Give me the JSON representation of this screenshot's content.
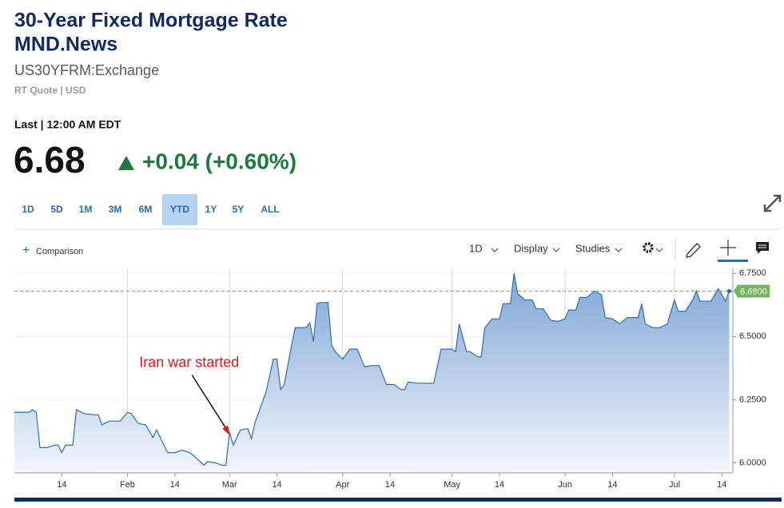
{
  "header": {
    "title_lines": [
      "30-Year Fixed Mortgage Rate",
      "MND.News"
    ],
    "symbol": "US30YFRM:Exchange",
    "quote_info": "RT Quote | USD",
    "last_label": "Last | 12:00 AM EDT"
  },
  "quote": {
    "price": "6.68",
    "change": "+0.04 (+0.60%)"
  },
  "range_buttons": [
    "1D",
    "5D",
    "1M",
    "3M",
    "6M",
    "YTD",
    "1Y",
    "5Y",
    "ALL"
  ],
  "active_range": "YTD",
  "toolbar": {
    "comparison": "Comparison",
    "interval": "1D",
    "display": "Display",
    "studies": "Studies"
  },
  "chart_data": {
    "type": "area",
    "series": [
      {
        "color": "#2f6db3",
        "x": [
          "01-01",
          "01-05",
          "01-06",
          "01-07",
          "01-08",
          "01-10",
          "01-12",
          "01-13",
          "01-14",
          "01-15",
          "01-17",
          "01-18",
          "01-20",
          "01-23",
          "01-24",
          "01-25",
          "01-27",
          "01-30",
          "02-01",
          "02-02",
          "02-04",
          "02-06",
          "02-08",
          "02-09",
          "02-10",
          "02-12",
          "02-14",
          "02-16",
          "02-18",
          "02-19",
          "02-22",
          "02-23",
          "02-25",
          "02-27",
          "02-28",
          "03-01",
          "03-02",
          "03-04",
          "03-06",
          "03-07",
          "03-08",
          "03-11",
          "03-13",
          "03-14",
          "03-15",
          "03-16",
          "03-18",
          "03-19",
          "03-22",
          "03-23",
          "03-24",
          "03-25",
          "03-26",
          "03-28",
          "03-29",
          "03-30",
          "04-01",
          "04-03",
          "04-05",
          "04-07",
          "04-09",
          "04-11",
          "04-13",
          "04-15",
          "04-17",
          "04-18",
          "04-19",
          "04-22",
          "04-26",
          "04-28",
          "05-01",
          "05-02",
          "05-03",
          "05-05",
          "05-06",
          "05-08",
          "05-09",
          "05-10",
          "05-12",
          "05-14",
          "05-15",
          "05-17",
          "05-18",
          "05-19",
          "05-21",
          "05-23",
          "05-24",
          "05-26",
          "05-28",
          "05-30",
          "06-01",
          "06-02",
          "06-04",
          "06-05",
          "06-07",
          "06-09",
          "06-11",
          "06-12",
          "06-14",
          "06-16",
          "06-18",
          "06-21",
          "06-22",
          "06-23",
          "06-25",
          "06-27",
          "06-29",
          "07-01",
          "07-02",
          "07-04",
          "07-06",
          "07-07",
          "07-08",
          "07-11",
          "07-13",
          "07-15",
          "07-16"
        ],
        "values": [
          6.2,
          6.2,
          6.21,
          6.2,
          6.06,
          6.06,
          6.07,
          6.07,
          6.04,
          6.07,
          6.07,
          6.21,
          6.195,
          6.19,
          6.19,
          6.15,
          6.165,
          6.165,
          6.2,
          6.195,
          6.155,
          6.15,
          6.1,
          6.13,
          6.1,
          6.04,
          6.04,
          6.05,
          6.04,
          6.03,
          5.99,
          6.005,
          6.0,
          5.99,
          5.99,
          6.12,
          6.07,
          6.13,
          6.135,
          6.095,
          6.16,
          6.28,
          6.41,
          6.41,
          6.29,
          6.31,
          6.465,
          6.535,
          6.535,
          6.555,
          6.48,
          6.63,
          6.635,
          6.635,
          6.465,
          6.44,
          6.41,
          6.45,
          6.45,
          6.38,
          6.385,
          6.385,
          6.31,
          6.31,
          6.29,
          6.29,
          6.32,
          6.315,
          6.315,
          6.45,
          6.45,
          6.44,
          6.55,
          6.44,
          6.44,
          6.42,
          6.42,
          6.535,
          6.57,
          6.57,
          6.63,
          6.63,
          6.75,
          6.67,
          6.645,
          6.645,
          6.61,
          6.61,
          6.565,
          6.56,
          6.57,
          6.605,
          6.605,
          6.655,
          6.655,
          6.68,
          6.665,
          6.575,
          6.57,
          6.55,
          6.575,
          6.575,
          6.63,
          6.55,
          6.535,
          6.535,
          6.55,
          6.645,
          6.6,
          6.6,
          6.645,
          6.68,
          6.64,
          6.64,
          6.69,
          6.64,
          6.68
        ]
      }
    ],
    "xlim": [
      "01-01",
      "07-17"
    ],
    "xticks": [
      {
        "value": "01-14",
        "label": "14"
      },
      {
        "value": "02-01",
        "label": "Feb"
      },
      {
        "value": "02-14",
        "label": "14"
      },
      {
        "value": "03-01",
        "label": "Mar"
      },
      {
        "value": "03-14",
        "label": "14"
      },
      {
        "value": "04-01",
        "label": "Apr"
      },
      {
        "value": "04-14",
        "label": "14"
      },
      {
        "value": "05-01",
        "label": "May"
      },
      {
        "value": "05-14",
        "label": "14"
      },
      {
        "value": "06-01",
        "label": "Jun"
      },
      {
        "value": "06-14",
        "label": "14"
      },
      {
        "value": "07-01",
        "label": "Jul"
      },
      {
        "value": "07-14",
        "label": "14"
      }
    ],
    "ylim": [
      5.96,
      6.77
    ],
    "yticks": [
      {
        "value": 6.0,
        "label": "6.0000"
      },
      {
        "value": 6.25,
        "label": "6.2500"
      },
      {
        "value": 6.5,
        "label": "6.5000"
      },
      {
        "value": 6.75,
        "label": "6.7500"
      }
    ],
    "grid": true,
    "reference_line": {
      "value": 6.68,
      "label": "6.6800",
      "color": "#74b65c"
    },
    "annotations": [
      {
        "text": "Iran war started",
        "x": "03-01",
        "y": 6.11,
        "color": "#e0161b"
      }
    ]
  }
}
